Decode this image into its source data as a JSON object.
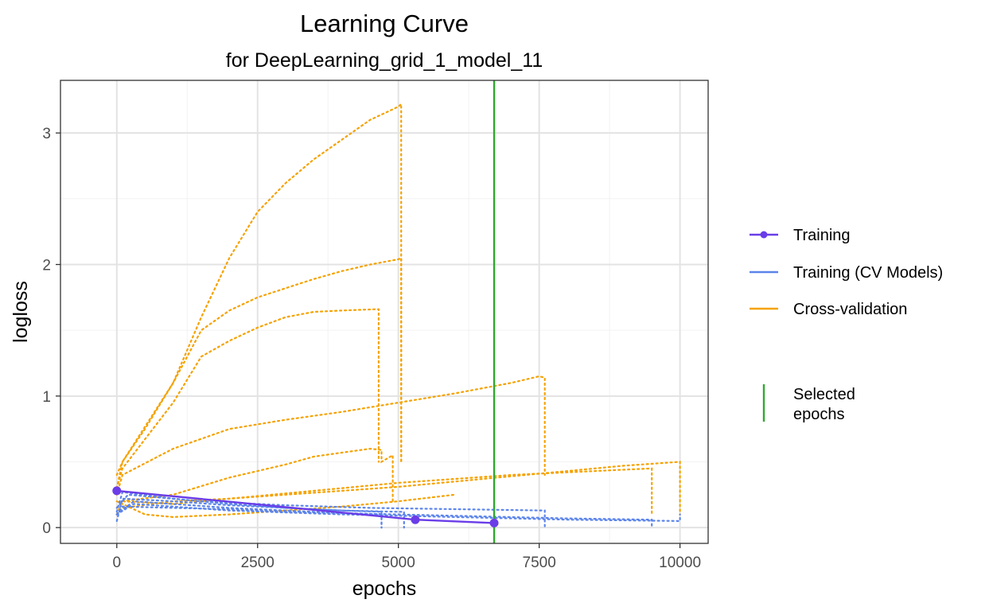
{
  "chart_data": {
    "type": "line",
    "title": "Learning Curve",
    "subtitle": "for DeepLearning_grid_1_model_11",
    "xlabel": "epochs",
    "ylabel": "logloss",
    "xlim": [
      -1000,
      10500
    ],
    "ylim": [
      -0.12,
      3.4
    ],
    "x_ticks": [
      0,
      2500,
      5000,
      7500,
      10000
    ],
    "x_tick_labels": [
      "0",
      "2500",
      "5000",
      "7500",
      "10000"
    ],
    "y_ticks": [
      0,
      1,
      2,
      3
    ],
    "y_tick_labels": [
      "0",
      "1",
      "2",
      "3"
    ],
    "grid": true,
    "legend_position": "right",
    "colors": {
      "training": "#6a3de8",
      "training_cv": "#5b84ea",
      "cross_validation": "#f5a200",
      "selected": "#2eaa2e",
      "grid_major": "#e3e3e3",
      "grid_minor": "#f2f2f2",
      "panel_border": "#333333"
    },
    "series": [
      {
        "name": "Training",
        "style": "solid-with-points",
        "x": [
          0,
          5300,
          6700
        ],
        "y": [
          0.28,
          0.06,
          0.035
        ]
      },
      {
        "name": "Training (CV Models)",
        "style": "dotted",
        "lines": [
          {
            "x": [
              0,
              100,
              1000,
              2000,
              3000,
              4000,
              4700,
              4700
            ],
            "y": [
              0.1,
              0.16,
              0.15,
              0.14,
              0.12,
              0.11,
              0.1,
              0.0
            ]
          },
          {
            "x": [
              0,
              100,
              1000,
              2000,
              3000,
              4000,
              5000,
              5100,
              5100
            ],
            "y": [
              0.05,
              0.22,
              0.2,
              0.17,
              0.15,
              0.13,
              0.12,
              0.12,
              0.0
            ]
          },
          {
            "x": [
              0,
              100,
              1000,
              2000,
              3000,
              4000,
              4700,
              4700
            ],
            "y": [
              0.12,
              0.27,
              0.22,
              0.18,
              0.15,
              0.13,
              0.12,
              0.0
            ]
          },
          {
            "x": [
              0,
              200,
              1500,
              3000,
              4500,
              6000,
              7600,
              7600
            ],
            "y": [
              0.15,
              0.25,
              0.2,
              0.17,
              0.15,
              0.14,
              0.13,
              0.0
            ]
          },
          {
            "x": [
              0,
              300,
              2000,
              4000,
              6000,
              8000,
              9500,
              9500
            ],
            "y": [
              0.1,
              0.2,
              0.15,
              0.11,
              0.09,
              0.07,
              0.06,
              0.0
            ]
          },
          {
            "x": [
              0,
              300,
              2000,
              4000,
              6000,
              8000,
              10000,
              10000
            ],
            "y": [
              0.1,
              0.18,
              0.13,
              0.1,
              0.08,
              0.06,
              0.05,
              0.1
            ]
          }
        ]
      },
      {
        "name": "Cross-validation",
        "style": "dotted",
        "lines": [
          {
            "x": [
              0,
              100,
              500,
              1000,
              1500,
              2000,
              2500,
              3000,
              3500,
              4000,
              4500,
              5000,
              5050,
              5050
            ],
            "y": [
              0.4,
              0.5,
              0.75,
              1.1,
              1.6,
              2.05,
              2.4,
              2.62,
              2.8,
              2.95,
              3.1,
              3.2,
              3.22,
              0.5
            ]
          },
          {
            "x": [
              0,
              100,
              1000,
              1500,
              2000,
              2500,
              3000,
              3500,
              4000,
              4500,
              5000,
              5050,
              5050
            ],
            "y": [
              0.3,
              0.5,
              1.1,
              1.5,
              1.65,
              1.75,
              1.82,
              1.89,
              1.95,
              2.0,
              2.04,
              2.05,
              0.5
            ]
          },
          {
            "x": [
              0,
              100,
              1000,
              1500,
              2000,
              2500,
              3000,
              3500,
              4000,
              4600,
              4650,
              4650
            ],
            "y": [
              0.3,
              0.45,
              0.95,
              1.3,
              1.42,
              1.52,
              1.6,
              1.64,
              1.65,
              1.66,
              1.66,
              0.5
            ]
          },
          {
            "x": [
              0,
              100,
              1000,
              2000,
              3000,
              4000,
              5000,
              6000,
              7000,
              7500,
              7600,
              7600
            ],
            "y": [
              0.25,
              0.4,
              0.6,
              0.75,
              0.82,
              0.88,
              0.95,
              1.02,
              1.1,
              1.15,
              1.14,
              0.4
            ]
          },
          {
            "x": [
              0,
              100,
              1000,
              2000,
              3000,
              3500,
              4000,
              4500,
              4700,
              4700,
              4900,
              4900
            ],
            "y": [
              0.1,
              0.2,
              0.25,
              0.38,
              0.48,
              0.54,
              0.57,
              0.6,
              0.59,
              0.5,
              0.55,
              0.2
            ]
          },
          {
            "x": [
              0,
              100,
              1000,
              2000,
              3000,
              4000,
              5000,
              6000,
              7000,
              8000,
              9000,
              9500,
              9500
            ],
            "y": [
              0.15,
              0.2,
              0.18,
              0.22,
              0.26,
              0.3,
              0.34,
              0.37,
              0.4,
              0.42,
              0.44,
              0.45,
              0.1
            ]
          },
          {
            "x": [
              0,
              100,
              1000,
              2000,
              3000,
              4000,
              5000,
              6000,
              7000,
              8000,
              9000,
              10000,
              10000
            ],
            "y": [
              0.1,
              0.15,
              0.2,
              0.22,
              0.25,
              0.28,
              0.31,
              0.35,
              0.39,
              0.43,
              0.47,
              0.5,
              0.1
            ]
          },
          {
            "x": [
              0,
              500,
              1000,
              2000,
              3000,
              4000,
              5000,
              6000
            ],
            "y": [
              0.2,
              0.1,
              0.08,
              0.1,
              0.13,
              0.16,
              0.2,
              0.25
            ]
          }
        ]
      },
      {
        "name": "Selected epochs",
        "style": "vline",
        "x": 6700
      }
    ]
  },
  "legend": [
    {
      "label": "Training",
      "key": "training"
    },
    {
      "label": "Training (CV Models)",
      "key": "training_cv"
    },
    {
      "label": "Cross-validation",
      "key": "cross_validation"
    }
  ],
  "legend_selected": {
    "line1": "Selected",
    "line2": "epochs"
  }
}
